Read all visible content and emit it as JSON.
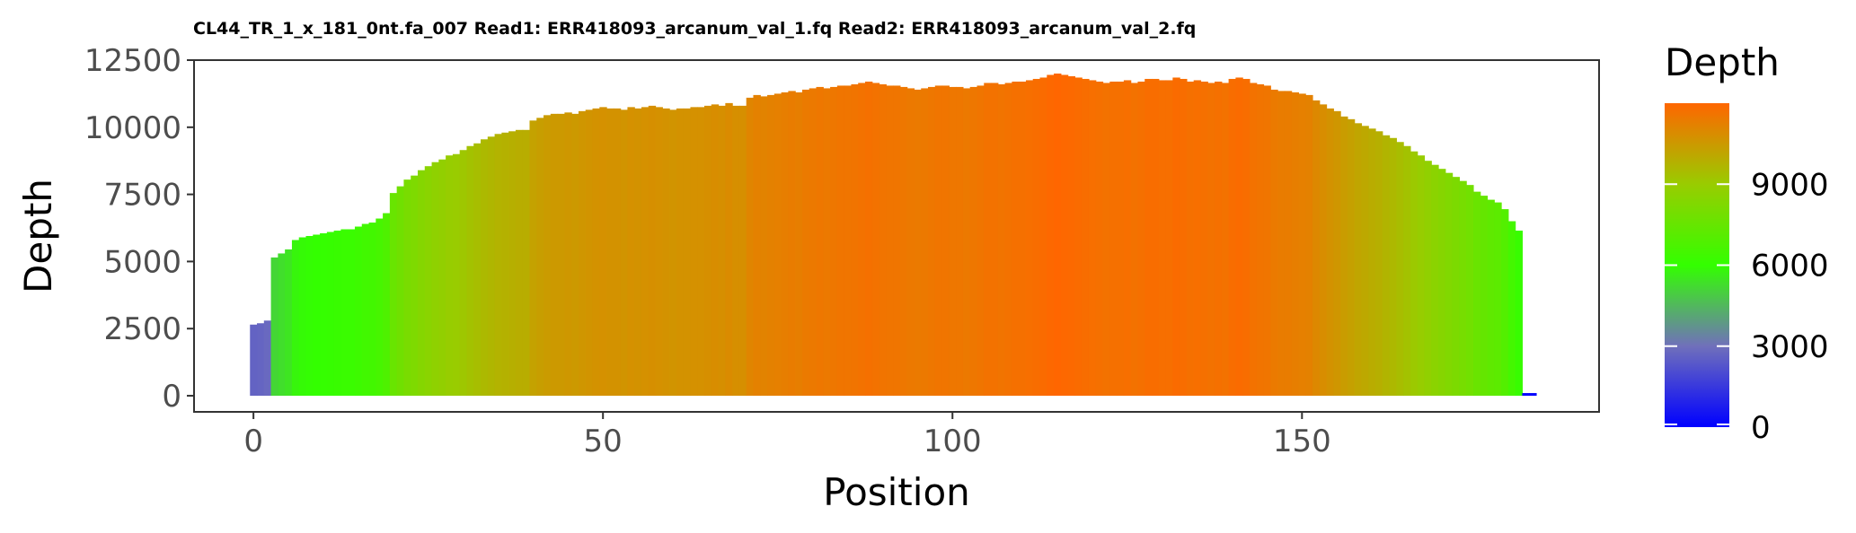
{
  "chart_data": {
    "type": "bar",
    "title": "CL44_TR_1_x_181_0nt.fa_007 Read1: ERR418093_arcanum_val_1.fq Read2: ERR418093_arcanum_val_2.fq",
    "xlabel": "Position",
    "ylabel": "Depth",
    "xlim": [
      -8.5,
      192.5
    ],
    "ylim": [
      -600,
      12500
    ],
    "x_ticks": [
      0,
      50,
      100,
      150
    ],
    "x_tick_labels": [
      "0",
      "50",
      "100",
      "150"
    ],
    "y_ticks": [
      0,
      2500,
      5000,
      7500,
      10000,
      12500
    ],
    "y_tick_labels": [
      "0",
      "2500",
      "5000",
      "7500",
      "10000",
      "12500"
    ],
    "grid": false,
    "legend": {
      "title": "Depth",
      "placement": "right",
      "breaks": [
        0,
        3000,
        6000,
        9000
      ],
      "break_labels": [
        "0",
        "3000",
        "6000",
        "9000"
      ],
      "range": [
        0,
        12000
      ]
    },
    "color_scale": {
      "stops": [
        {
          "value": 0,
          "color": "#0000ff"
        },
        {
          "value": 3000,
          "color": "#7070bb"
        },
        {
          "value": 6000,
          "color": "#33ff00"
        },
        {
          "value": 9000,
          "color": "#99cc00"
        },
        {
          "value": 12000,
          "color": "#ff6600"
        }
      ]
    },
    "x": [
      0,
      1,
      2,
      3,
      4,
      5,
      6,
      7,
      8,
      9,
      10,
      11,
      12,
      13,
      14,
      15,
      16,
      17,
      18,
      19,
      20,
      21,
      22,
      23,
      24,
      25,
      26,
      27,
      28,
      29,
      30,
      31,
      32,
      33,
      34,
      35,
      36,
      37,
      38,
      39,
      40,
      41,
      42,
      43,
      44,
      45,
      46,
      47,
      48,
      49,
      50,
      51,
      52,
      53,
      54,
      55,
      56,
      57,
      58,
      59,
      60,
      61,
      62,
      63,
      64,
      65,
      66,
      67,
      68,
      69,
      70,
      71,
      72,
      73,
      74,
      75,
      76,
      77,
      78,
      79,
      80,
      81,
      82,
      83,
      84,
      85,
      86,
      87,
      88,
      89,
      90,
      91,
      92,
      93,
      94,
      95,
      96,
      97,
      98,
      99,
      100,
      101,
      102,
      103,
      104,
      105,
      106,
      107,
      108,
      109,
      110,
      111,
      112,
      113,
      114,
      115,
      116,
      117,
      118,
      119,
      120,
      121,
      122,
      123,
      124,
      125,
      126,
      127,
      128,
      129,
      130,
      131,
      132,
      133,
      134,
      135,
      136,
      137,
      138,
      139,
      140,
      141,
      142,
      143,
      144,
      145,
      146,
      147,
      148,
      149,
      150,
      151,
      152,
      153,
      154,
      155,
      156,
      157,
      158,
      159,
      160,
      161,
      162,
      163,
      164,
      165,
      166,
      167,
      168,
      169,
      170,
      171,
      172,
      173,
      174,
      175,
      176,
      177,
      178,
      179,
      180,
      181,
      182,
      183
    ],
    "values": [
      2650,
      2700,
      2800,
      5150,
      5300,
      5450,
      5800,
      5900,
      5950,
      6000,
      6050,
      6100,
      6150,
      6200,
      6200,
      6300,
      6400,
      6450,
      6600,
      6800,
      7550,
      7800,
      8050,
      8200,
      8400,
      8550,
      8700,
      8800,
      8950,
      9000,
      9150,
      9300,
      9400,
      9550,
      9650,
      9750,
      9800,
      9850,
      9900,
      9900,
      10250,
      10350,
      10450,
      10500,
      10500,
      10550,
      10500,
      10600,
      10650,
      10700,
      10750,
      10700,
      10700,
      10650,
      10750,
      10700,
      10750,
      10800,
      10750,
      10700,
      10650,
      10700,
      10700,
      10750,
      10750,
      10800,
      10850,
      10800,
      10900,
      10800,
      10800,
      11100,
      11200,
      11150,
      11200,
      11250,
      11300,
      11350,
      11300,
      11400,
      11450,
      11500,
      11450,
      11500,
      11550,
      11550,
      11600,
      11650,
      11700,
      11650,
      11600,
      11550,
      11550,
      11500,
      11450,
      11400,
      11450,
      11500,
      11550,
      11550,
      11500,
      11500,
      11450,
      11500,
      11550,
      11650,
      11650,
      11600,
      11650,
      11700,
      11700,
      11750,
      11800,
      11850,
      11950,
      12000,
      11950,
      11900,
      11850,
      11800,
      11750,
      11700,
      11650,
      11700,
      11700,
      11750,
      11650,
      11700,
      11800,
      11800,
      11750,
      11750,
      11850,
      11800,
      11700,
      11750,
      11700,
      11650,
      11700,
      11650,
      11800,
      11850,
      11800,
      11650,
      11600,
      11550,
      11400,
      11350,
      11350,
      11300,
      11250,
      11200,
      11000,
      10850,
      10700,
      10600,
      10400,
      10300,
      10150,
      10050,
      9950,
      9850,
      9700,
      9600,
      9450,
      9300,
      9100,
      8950,
      8750,
      8600,
      8450,
      8300,
      8150,
      8000,
      7850,
      7600,
      7450,
      7300,
      7200,
      6950,
      6500,
      6150,
      100,
      100
    ]
  }
}
